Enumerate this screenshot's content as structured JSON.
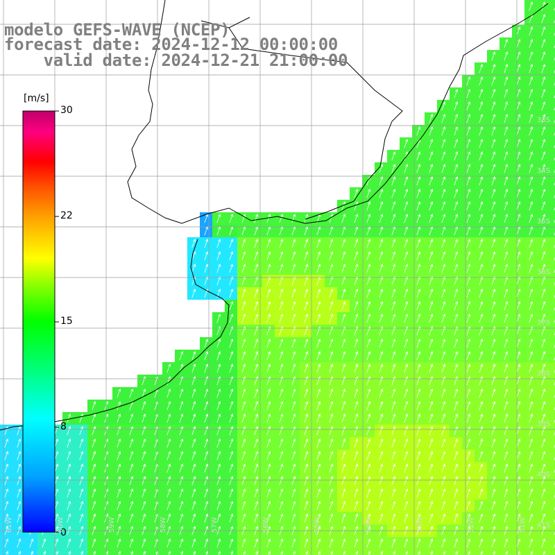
{
  "header": {
    "line1": "modelo GEFS-WAVE (NCEP)",
    "line2": "forecast date: 2024-12-12 00:00:00",
    "line3": "    valid date: 2024-12-21 21:00:00"
  },
  "colorbar": {
    "unit": "[m/s]",
    "ticks": [
      "30",
      "22",
      "15",
      "8",
      "0"
    ],
    "min": 0,
    "max": 30,
    "colors": [
      "#0000ff",
      "#00a0ff",
      "#00ffff",
      "#00ff80",
      "#00ff00",
      "#80ff00",
      "#ffff00",
      "#ffa000",
      "#ff5000",
      "#ff0000",
      "#ff0080",
      "#c0006c"
    ]
  },
  "grid": {
    "lon_labels": [
      "61W",
      "60W",
      "59W",
      "58W",
      "57W",
      "56W",
      "55W",
      "54W",
      "53W",
      "52W",
      "51W"
    ],
    "lat_labels": [
      "33S",
      "34S",
      "35S",
      "36S",
      "37S",
      "38S",
      "39S",
      "40S",
      "41S"
    ]
  },
  "map": {
    "field": "wind speed",
    "land_color": "#ffffff",
    "coast_color": "#000000",
    "grid_color": "#9a9a9a",
    "arrow_color": "#ffffff",
    "arrow_direction": "from south-south-west (pointing north-north-east)"
  }
}
